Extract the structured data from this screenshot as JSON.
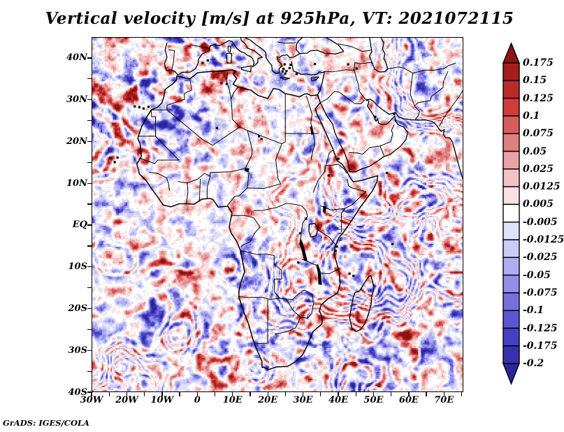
{
  "title": "Vertical velocity [m/s] at 925hPa, VT: 2021072115",
  "credit": "GrADS: IGES/COLA",
  "chart_data": {
    "type": "heatmap",
    "title": "Vertical velocity [m/s] at 925hPa, VT: 2021072115",
    "variable": "Vertical velocity",
    "units": "m/s",
    "pressure_level": "925hPa",
    "valid_time_label": "VT: 2021072115",
    "projection": "latlon",
    "region": "Africa, Mediterranean, Arabia, western Indian Ocean",
    "lon_range": [
      -30,
      75.5
    ],
    "lat_range": [
      -40,
      45
    ],
    "x_ticks": [
      {
        "label": "30W",
        "lon": -30
      },
      {
        "label": "20W",
        "lon": -20
      },
      {
        "label": "10W",
        "lon": -10
      },
      {
        "label": "0",
        "lon": 0
      },
      {
        "label": "10E",
        "lon": 10
      },
      {
        "label": "20E",
        "lon": 20
      },
      {
        "label": "30E",
        "lon": 30
      },
      {
        "label": "40E",
        "lon": 40
      },
      {
        "label": "50E",
        "lon": 50
      },
      {
        "label": "60E",
        "lon": 60
      },
      {
        "label": "70E",
        "lon": 70
      }
    ],
    "y_ticks": [
      {
        "label": "40N",
        "lat": 40
      },
      {
        "label": "30N",
        "lat": 30
      },
      {
        "label": "20N",
        "lat": 20
      },
      {
        "label": "10N",
        "lat": 10
      },
      {
        "label": "EQ",
        "lat": 0
      },
      {
        "label": "10S",
        "lat": -10
      },
      {
        "label": "20S",
        "lat": -20
      },
      {
        "label": "30S",
        "lat": -30
      },
      {
        "label": "40S",
        "lat": -40
      }
    ],
    "minor_tick_interval_deg": 5,
    "grid": false,
    "map_line_color": "#000000",
    "background": "#ffffff",
    "colorbar": {
      "orientation": "vertical",
      "position": "right",
      "has_over_arrow": true,
      "has_under_arrow": true,
      "labels": [
        "0.175",
        "0.15",
        "0.125",
        "0.1",
        "0.075",
        "0.05",
        "0.025",
        "0.0125",
        "0.005",
        "-0.005",
        "-0.0125",
        "-0.025",
        "-0.05",
        "-0.075",
        "-0.1",
        "-0.125",
        "-0.175",
        "-0.2"
      ],
      "colors_top_to_bottom": [
        "#8e1212",
        "#a51d1d",
        "#bc2a2a",
        "#d33b3b",
        "#d65c5c",
        "#e07f7f",
        "#eaa2a2",
        "#f3c3c3",
        "#fae1e1",
        "#ffffff",
        "#e1e1fb",
        "#cbcbf6",
        "#b0adf1",
        "#938ee9",
        "#7671df",
        "#5b55d3",
        "#4640c3",
        "#3730af",
        "#2b249c"
      ]
    }
  }
}
